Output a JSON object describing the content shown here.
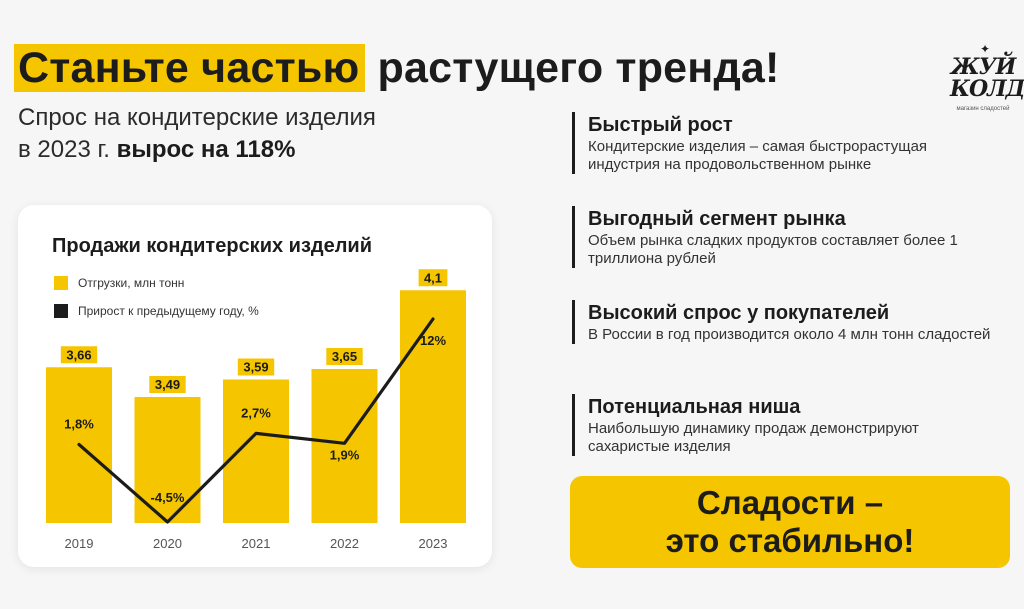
{
  "headline": {
    "highlight": "Станьте частью",
    "rest": " растущего тренда!"
  },
  "subhead": {
    "line1": "Спрос на кондитерские изделия",
    "line2_prefix": "в 2023 г. ",
    "line2_bold": "вырос на 118%"
  },
  "logo": {
    "text": "ЖУЙ КОЛДУЙ",
    "subtitle": "магазин сладостей"
  },
  "colors": {
    "accent": "#f5c600",
    "dark": "#1c1c1c",
    "background": "#f6f6f6"
  },
  "chart_data": {
    "type": "bar",
    "title": "Продажи кондитерских изделий",
    "categories": [
      "2019",
      "2020",
      "2021",
      "2022",
      "2023"
    ],
    "series": [
      {
        "name": "Отгрузки, млн тонн",
        "type": "bar",
        "color": "#f5c600",
        "values": [
          3.66,
          3.49,
          3.59,
          3.65,
          4.1
        ],
        "labels": [
          "3,66",
          "3,49",
          "3,59",
          "3,65",
          "4,1"
        ]
      },
      {
        "name": "Прирост к предыдущему году, %",
        "type": "line",
        "color": "#1c1c1c",
        "values": [
          1.8,
          -4.5,
          2.7,
          1.9,
          12
        ],
        "labels": [
          "1,8%",
          "-4,5%",
          "2,7%",
          "1,9%",
          "12%"
        ]
      }
    ],
    "legend_position": "top-left",
    "grid": false
  },
  "features": [
    {
      "title": "Быстрый рост",
      "text": "Кондитерские изделия – самая быстрорастущая индустрия на продовольственном рынке"
    },
    {
      "title": "Выгодный сегмент рынка",
      "text": "Объем рынка сладких продуктов составляет более 1 триллиона рублей"
    },
    {
      "title": "Высокий спрос у покупателей",
      "text": "В России в год производится около 4 млн тонн сладостей"
    },
    {
      "title": "Потенциальная ниша",
      "text": "Наибольшую динамику продаж демонстрируют сахаристые изделия"
    }
  ],
  "cta": {
    "text": "Сладости –\nэто стабильно!"
  }
}
